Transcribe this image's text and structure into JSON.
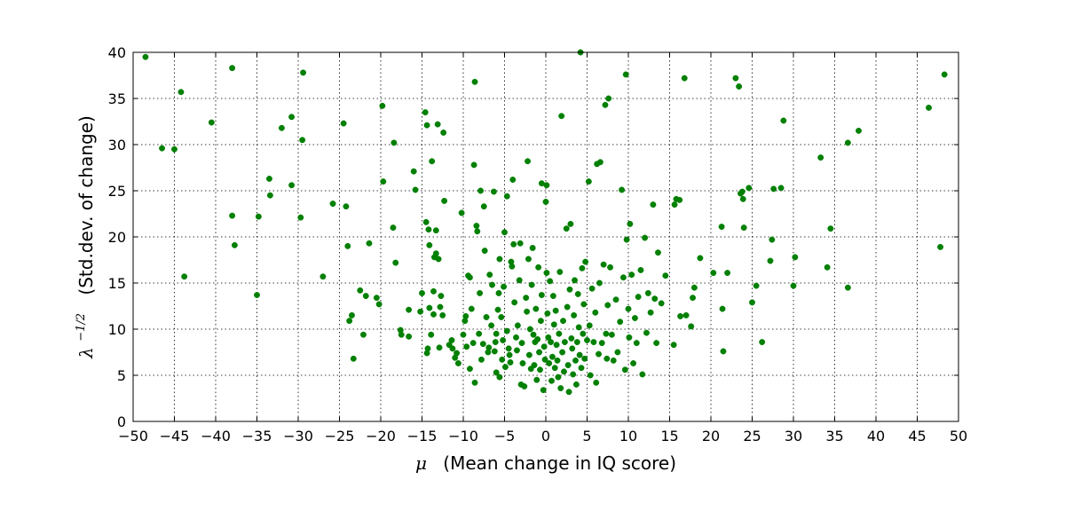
{
  "chart_data": {
    "type": "scatter",
    "title": "",
    "xlabel": {
      "symbol": "μ",
      "text": "(Mean change in IQ score)"
    },
    "ylabel": {
      "symbol": "λ",
      "exponent": "−1/2",
      "text": "(Std.dev. of change)"
    },
    "xlim": [
      -50,
      50
    ],
    "ylim": [
      0,
      40
    ],
    "xticks": [
      -50,
      -45,
      -40,
      -35,
      -30,
      -25,
      -20,
      -15,
      -10,
      -5,
      0,
      5,
      10,
      15,
      20,
      25,
      30,
      35,
      40,
      45,
      50
    ],
    "yticks": [
      0,
      5,
      10,
      15,
      20,
      25,
      30,
      35,
      40
    ],
    "xtick_labels": [
      "−50",
      "−45",
      "−40",
      "−35",
      "−30",
      "−25",
      "−20",
      "−15",
      "−10",
      "−5",
      "0",
      "5",
      "10",
      "15",
      "20",
      "25",
      "30",
      "35",
      "40",
      "45",
      "50"
    ],
    "ytick_labels": [
      "0",
      "5",
      "10",
      "15",
      "20",
      "25",
      "30",
      "35",
      "40"
    ],
    "grid": true,
    "marker_color": "#008000",
    "points": [
      [
        -48.5,
        39.5
      ],
      [
        -46.5,
        29.6
      ],
      [
        -45,
        29.5
      ],
      [
        -44.2,
        35.7
      ],
      [
        -43.8,
        15.7
      ],
      [
        -40.5,
        32.4
      ],
      [
        -38,
        38.3
      ],
      [
        -38,
        22.3
      ],
      [
        -37.7,
        19.1
      ],
      [
        -35,
        13.7
      ],
      [
        -34.8,
        22.2
      ],
      [
        -33.4,
        24.5
      ],
      [
        -33.5,
        26.3
      ],
      [
        -32,
        31.8
      ],
      [
        -30.8,
        33.0
      ],
      [
        -30.8,
        25.6
      ],
      [
        -29.7,
        22.1
      ],
      [
        -29.5,
        30.5
      ],
      [
        -29.4,
        37.8
      ],
      [
        -27,
        15.7
      ],
      [
        -25.8,
        23.6
      ],
      [
        -24.5,
        32.3
      ],
      [
        -24.2,
        23.3
      ],
      [
        -24,
        19.0
      ],
      [
        -23.8,
        10.9
      ],
      [
        -23.5,
        11.5
      ],
      [
        -23.3,
        6.8
      ],
      [
        -22.5,
        14.2
      ],
      [
        -22.1,
        9.4
      ],
      [
        -21.8,
        13.6
      ],
      [
        -21.4,
        19.3
      ],
      [
        -20.5,
        13.4
      ],
      [
        -20.2,
        12.7
      ],
      [
        -19.8,
        34.2
      ],
      [
        -19.7,
        26.0
      ],
      [
        -18.5,
        21.0
      ],
      [
        -18.4,
        30.2
      ],
      [
        -18.2,
        17.2
      ],
      [
        -17.6,
        9.9
      ],
      [
        -17.5,
        9.4
      ],
      [
        -16.6,
        12.1
      ],
      [
        -16.6,
        9.2
      ],
      [
        -16,
        27.1
      ],
      [
        -15.8,
        25.1
      ],
      [
        -15.2,
        11.9
      ],
      [
        -15,
        13.9
      ],
      [
        -14.6,
        33.5
      ],
      [
        -14.5,
        21.6
      ],
      [
        -14.4,
        32.1
      ],
      [
        -14.4,
        7.4
      ],
      [
        -14.3,
        7.9
      ],
      [
        -14.2,
        20.8
      ],
      [
        -14.1,
        19.1
      ],
      [
        -14.1,
        12.3
      ],
      [
        -13.9,
        9.4
      ],
      [
        -13.8,
        28.2
      ],
      [
        -13.6,
        11.6
      ],
      [
        -13.6,
        14.1
      ],
      [
        -13.5,
        17.8
      ],
      [
        -13.3,
        20.7
      ],
      [
        -13.3,
        18.2
      ],
      [
        -13.1,
        32.2
      ],
      [
        -13,
        17.6
      ],
      [
        -12.9,
        8.0
      ],
      [
        -12.8,
        12.4
      ],
      [
        -12.7,
        13.6
      ],
      [
        -12.5,
        11.5
      ],
      [
        -12.4,
        31.3
      ],
      [
        -12.3,
        23.9
      ],
      [
        -11.7,
        8.3
      ],
      [
        -11.4,
        8.8
      ],
      [
        -11.3,
        7.9
      ],
      [
        -11,
        6.9
      ],
      [
        -10.8,
        7.4
      ],
      [
        -10.6,
        6.3
      ],
      [
        -10.2,
        22.6
      ],
      [
        -10,
        9.4
      ],
      [
        -9.8,
        10.9
      ],
      [
        -9.7,
        11.4
      ],
      [
        -9.6,
        8.1
      ],
      [
        -9.4,
        15.8
      ],
      [
        -9.2,
        5.7
      ],
      [
        -9.2,
        15.6
      ],
      [
        -9,
        12.2
      ],
      [
        -8.8,
        8.5
      ],
      [
        -8.7,
        27.8
      ],
      [
        -8.6,
        36.8
      ],
      [
        -8.6,
        4.2
      ],
      [
        -8.4,
        21.2
      ],
      [
        -8.3,
        20.6
      ],
      [
        -8.1,
        9.5
      ],
      [
        -8,
        13.9
      ],
      [
        -7.9,
        25.0
      ],
      [
        -7.8,
        6.7
      ],
      [
        -7.6,
        8.4
      ],
      [
        -7.5,
        23.3
      ],
      [
        -7.4,
        18.5
      ],
      [
        -7.2,
        11.3
      ],
      [
        -7,
        7.5
      ],
      [
        -6.9,
        8.0
      ],
      [
        -6.8,
        15.9
      ],
      [
        -6.6,
        10.4
      ],
      [
        -6.5,
        14.8
      ],
      [
        -6.3,
        24.9
      ],
      [
        -6.2,
        7.6
      ],
      [
        -6.1,
        8.6
      ],
      [
        -6,
        9.5
      ],
      [
        -6,
        5.3
      ],
      [
        -5.8,
        12.1
      ],
      [
        -5.7,
        13.9
      ],
      [
        -5.6,
        17.6
      ],
      [
        -5.6,
        4.8
      ],
      [
        -5.4,
        11.3
      ],
      [
        -5.3,
        6.7
      ],
      [
        -5.2,
        8.8
      ],
      [
        -5.1,
        14.6
      ],
      [
        -5,
        20.5
      ],
      [
        -4.9,
        5.9
      ],
      [
        -4.7,
        24.4
      ],
      [
        -4.7,
        9.8
      ],
      [
        -4.5,
        7.9
      ],
      [
        -4.4,
        7.2
      ],
      [
        -4.3,
        6.4
      ],
      [
        -4.2,
        17.3
      ],
      [
        -4.1,
        16.8
      ],
      [
        -4,
        26.2
      ],
      [
        -3.9,
        19.2
      ],
      [
        -3.8,
        12.9
      ],
      [
        -3.6,
        9.1
      ],
      [
        -3.5,
        7.7
      ],
      [
        -3.4,
        10.4
      ],
      [
        -3.2,
        15.3
      ],
      [
        -3.1,
        19.3
      ],
      [
        -3,
        4.0
      ],
      [
        -2.9,
        8.5
      ],
      [
        -2.8,
        6.3
      ],
      [
        -2.6,
        3.8
      ],
      [
        -2.4,
        13.4
      ],
      [
        -2.3,
        11.9
      ],
      [
        -2.2,
        28.2
      ],
      [
        -2.1,
        17.6
      ],
      [
        -2,
        7.2
      ],
      [
        -1.9,
        10.0
      ],
      [
        -1.8,
        5.7
      ],
      [
        -1.7,
        14.8
      ],
      [
        -1.6,
        18.8
      ],
      [
        -1.5,
        9.4
      ],
      [
        -1.4,
        6.1
      ],
      [
        -1.3,
        8.6
      ],
      [
        -1.2,
        12.2
      ],
      [
        -1.1,
        4.5
      ],
      [
        -1,
        8.9
      ],
      [
        -0.9,
        16.7
      ],
      [
        -0.8,
        7.5
      ],
      [
        -0.7,
        5.6
      ],
      [
        -0.6,
        10.9
      ],
      [
        -0.5,
        25.8
      ],
      [
        -0.5,
        13.7
      ],
      [
        -0.3,
        3.4
      ],
      [
        -0.2,
        8.1
      ],
      [
        -0.1,
        6.7
      ],
      [
        0,
        23.8
      ],
      [
        0.1,
        25.6
      ],
      [
        0.1,
        16.1
      ],
      [
        0.2,
        11.7
      ],
      [
        0.3,
        9.1
      ],
      [
        0.4,
        6.3
      ],
      [
        0.5,
        15.2
      ],
      [
        0.6,
        8.6
      ],
      [
        0.7,
        4.4
      ],
      [
        0.8,
        7.0
      ],
      [
        0.9,
        13.6
      ],
      [
        1.0,
        10.5
      ],
      [
        1.1,
        5.8
      ],
      [
        1.2,
        12.0
      ],
      [
        1.3,
        8.3
      ],
      [
        1.4,
        6.6
      ],
      [
        1.5,
        4.8
      ],
      [
        1.6,
        9.5
      ],
      [
        1.7,
        16.2
      ],
      [
        1.8,
        3.6
      ],
      [
        1.9,
        33.1
      ],
      [
        2.0,
        7.5
      ],
      [
        2.1,
        10.9
      ],
      [
        2.2,
        5.4
      ],
      [
        2.3,
        8.6
      ],
      [
        2.5,
        20.9
      ],
      [
        2.6,
        12.4
      ],
      [
        2.7,
        6.1
      ],
      [
        2.8,
        3.2
      ],
      [
        2.9,
        14.3
      ],
      [
        3.0,
        21.4
      ],
      [
        3.1,
        9.0
      ],
      [
        3.2,
        7.9
      ],
      [
        3.3,
        5.1
      ],
      [
        3.4,
        11.5
      ],
      [
        3.5,
        15.3
      ],
      [
        3.6,
        6.6
      ],
      [
        3.7,
        4.0
      ],
      [
        3.8,
        8.6
      ],
      [
        3.9,
        13.8
      ],
      [
        4.0,
        10.2
      ],
      [
        4.1,
        7.2
      ],
      [
        4.2,
        40.0
      ],
      [
        4.3,
        5.8
      ],
      [
        4.4,
        16.6
      ],
      [
        4.5,
        9.5
      ],
      [
        4.6,
        12.7
      ],
      [
        4.7,
        6.8
      ],
      [
        4.8,
        17.3
      ],
      [
        5.0,
        8.8
      ],
      [
        5.2,
        26.0
      ],
      [
        5.3,
        10.4
      ],
      [
        5.4,
        5.0
      ],
      [
        5.6,
        14.4
      ],
      [
        5.8,
        8.6
      ],
      [
        6.0,
        11.8
      ],
      [
        6.1,
        4.2
      ],
      [
        6.2,
        27.9
      ],
      [
        6.4,
        7.3
      ],
      [
        6.5,
        15.0
      ],
      [
        6.6,
        28.1
      ],
      [
        6.8,
        8.5
      ],
      [
        7.0,
        17.0
      ],
      [
        7.2,
        34.3
      ],
      [
        7.3,
        9.5
      ],
      [
        7.4,
        6.8
      ],
      [
        7.5,
        12.6
      ],
      [
        7.6,
        35.0
      ],
      [
        7.8,
        16.7
      ],
      [
        8.0,
        9.4
      ],
      [
        8.2,
        6.6
      ],
      [
        8.5,
        13.2
      ],
      [
        8.7,
        7.5
      ],
      [
        9.0,
        10.8
      ],
      [
        9.2,
        25.1
      ],
      [
        9.4,
        15.6
      ],
      [
        9.6,
        5.6
      ],
      [
        9.7,
        37.6
      ],
      [
        9.8,
        19.7
      ],
      [
        10.0,
        12.2
      ],
      [
        10.1,
        9.1
      ],
      [
        10.2,
        21.4
      ],
      [
        10.4,
        15.9
      ],
      [
        10.6,
        6.3
      ],
      [
        10.8,
        11.2
      ],
      [
        11.0,
        8.5
      ],
      [
        11.2,
        13.5
      ],
      [
        11.5,
        16.4
      ],
      [
        11.7,
        5.1
      ],
      [
        12.0,
        19.9
      ],
      [
        12.2,
        9.6
      ],
      [
        12.4,
        13.9
      ],
      [
        12.7,
        11.8
      ],
      [
        13.0,
        23.5
      ],
      [
        13.2,
        13.3
      ],
      [
        13.4,
        8.5
      ],
      [
        13.6,
        18.3
      ],
      [
        14.0,
        12.8
      ],
      [
        14.5,
        15.8
      ],
      [
        15.5,
        8.3
      ],
      [
        15.6,
        23.5
      ],
      [
        15.8,
        24.1
      ],
      [
        16.2,
        24.0
      ],
      [
        16.3,
        11.4
      ],
      [
        16.8,
        37.2
      ],
      [
        17.0,
        11.5
      ],
      [
        17.6,
        10.3
      ],
      [
        17.8,
        13.4
      ],
      [
        18.0,
        14.5
      ],
      [
        18.7,
        17.7
      ],
      [
        20.3,
        16.1
      ],
      [
        21.3,
        21.1
      ],
      [
        21.4,
        12.2
      ],
      [
        21.5,
        7.6
      ],
      [
        22.0,
        16.1
      ],
      [
        23.0,
        37.2
      ],
      [
        23.4,
        36.3
      ],
      [
        23.6,
        24.7
      ],
      [
        23.8,
        24.9
      ],
      [
        23.9,
        24.1
      ],
      [
        24.0,
        21.0
      ],
      [
        24.6,
        25.3
      ],
      [
        25.0,
        12.9
      ],
      [
        25.5,
        14.7
      ],
      [
        26.2,
        8.6
      ],
      [
        27.2,
        17.4
      ],
      [
        27.4,
        19.7
      ],
      [
        27.6,
        25.2
      ],
      [
        28.5,
        25.3
      ],
      [
        28.8,
        32.6
      ],
      [
        30.0,
        14.7
      ],
      [
        30.2,
        17.8
      ],
      [
        33.3,
        28.6
      ],
      [
        34.1,
        16.7
      ],
      [
        34.5,
        20.9
      ],
      [
        36.6,
        30.2
      ],
      [
        36.6,
        14.5
      ],
      [
        37.9,
        31.5
      ],
      [
        46.4,
        34.0
      ],
      [
        47.8,
        18.9
      ],
      [
        48.3,
        37.6
      ]
    ]
  }
}
